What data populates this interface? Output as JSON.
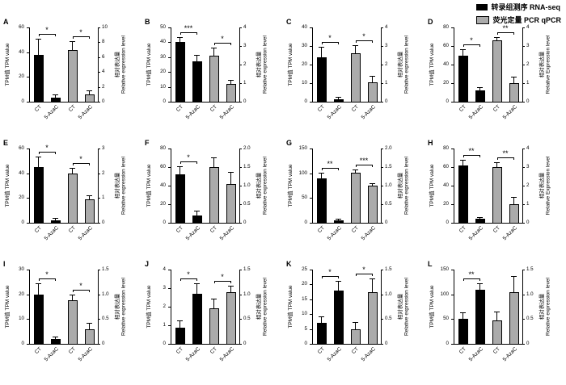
{
  "legend": {
    "items": [
      {
        "label": "转录组测序 RNA-seq",
        "color": "#000000"
      },
      {
        "label": "荧光定量 PCR qPCR",
        "color": "#ababab"
      }
    ]
  },
  "chart_data": [
    {
      "type": "bar",
      "panel": "A",
      "left_axis": {
        "label": "TPM值 TPM value",
        "max": 60,
        "ticks": [
          "0",
          "20",
          "40",
          "60"
        ]
      },
      "right_axis": {
        "label_cn": "相对表达量",
        "label_en": "Relative expression level",
        "max": 10,
        "ticks": [
          "0",
          "2",
          "4",
          "6",
          "8",
          "10"
        ]
      },
      "categories": [
        "CT",
        "5-AzaC",
        "CT",
        "5-AzaC"
      ],
      "bars": [
        {
          "series": "RNA-seq",
          "category": "CT",
          "axis": "left",
          "value": 38,
          "error": 12
        },
        {
          "series": "RNA-seq",
          "category": "5-AzaC",
          "axis": "left",
          "value": 3.5,
          "error": 1.5
        },
        {
          "series": "qPCR",
          "category": "CT",
          "axis": "right",
          "value": 7,
          "error": 1
        },
        {
          "series": "qPCR",
          "category": "5-AzaC",
          "axis": "right",
          "value": 1,
          "error": 0.4
        }
      ],
      "significance": [
        {
          "bars": [
            0,
            1
          ],
          "label": "*"
        },
        {
          "bars": [
            2,
            3
          ],
          "label": "*"
        }
      ]
    },
    {
      "type": "bar",
      "panel": "B",
      "left_axis": {
        "label": "TPM值 TPM value",
        "max": 50,
        "ticks": [
          "0",
          "10",
          "20",
          "30",
          "40",
          "50"
        ]
      },
      "right_axis": {
        "label_cn": "相对表达量",
        "label_en": "Relative expression level",
        "max": 4,
        "ticks": [
          "0",
          "1",
          "2",
          "3",
          "4"
        ]
      },
      "categories": [
        "CT",
        "5-AzaC",
        "CT",
        "5-AzaC"
      ],
      "bars": [
        {
          "series": "RNA-seq",
          "category": "CT",
          "axis": "left",
          "value": 40,
          "error": 3
        },
        {
          "series": "RNA-seq",
          "category": "5-AzaC",
          "axis": "left",
          "value": 27,
          "error": 4
        },
        {
          "series": "qPCR",
          "category": "CT",
          "axis": "right",
          "value": 2.5,
          "error": 0.35
        },
        {
          "series": "qPCR",
          "category": "5-AzaC",
          "axis": "right",
          "value": 0.95,
          "error": 0.2
        }
      ],
      "significance": [
        {
          "bars": [
            0,
            1
          ],
          "label": "***"
        },
        {
          "bars": [
            2,
            3
          ],
          "label": "*"
        }
      ]
    },
    {
      "type": "bar",
      "panel": "C",
      "left_axis": {
        "label": "TPM值 TPM value",
        "max": 40,
        "ticks": [
          "0",
          "10",
          "20",
          "30",
          "40"
        ]
      },
      "right_axis": {
        "label_cn": "相对表达量",
        "label_en": "Relative expression level",
        "max": 4,
        "ticks": [
          "0",
          "1",
          "2",
          "3",
          "4"
        ]
      },
      "categories": [
        "CT",
        "5-AzaC",
        "CT",
        "5-AzaC"
      ],
      "bars": [
        {
          "series": "RNA-seq",
          "category": "CT",
          "axis": "left",
          "value": 24,
          "error": 5
        },
        {
          "series": "RNA-seq",
          "category": "5-AzaC",
          "axis": "left",
          "value": 1.5,
          "error": 0.8
        },
        {
          "series": "qPCR",
          "category": "CT",
          "axis": "right",
          "value": 2.6,
          "error": 0.4
        },
        {
          "series": "qPCR",
          "category": "5-AzaC",
          "axis": "right",
          "value": 1.05,
          "error": 0.3
        }
      ],
      "significance": [
        {
          "bars": [
            0,
            1
          ],
          "label": "*"
        },
        {
          "bars": [
            2,
            3
          ],
          "label": "*"
        }
      ]
    },
    {
      "type": "bar",
      "panel": "D",
      "left_axis": {
        "label": "TPM值 TPM value",
        "max": 80,
        "ticks": [
          "0",
          "20",
          "40",
          "60",
          "80"
        ]
      },
      "right_axis": {
        "label_cn": "相对表达量",
        "label_en": "Relative Expression level",
        "max": 4,
        "ticks": [
          "0",
          "1",
          "2",
          "3",
          "4"
        ]
      },
      "categories": [
        "CT",
        "5-AzaC",
        "CT",
        "5-AzaC"
      ],
      "bars": [
        {
          "series": "RNA-seq",
          "category": "CT",
          "axis": "left",
          "value": 50,
          "error": 6
        },
        {
          "series": "RNA-seq",
          "category": "5-AzaC",
          "axis": "left",
          "value": 12,
          "error": 3
        },
        {
          "series": "qPCR",
          "category": "CT",
          "axis": "right",
          "value": 3.3,
          "error": 0.15
        },
        {
          "series": "qPCR",
          "category": "5-AzaC",
          "axis": "right",
          "value": 1,
          "error": 0.3
        }
      ],
      "significance": [
        {
          "bars": [
            0,
            1
          ],
          "label": "*"
        },
        {
          "bars": [
            2,
            3
          ],
          "label": "**"
        }
      ]
    },
    {
      "type": "bar",
      "panel": "E",
      "left_axis": {
        "label": "TPM值 TPM value",
        "max": 60,
        "ticks": [
          "0",
          "20",
          "40",
          "60"
        ]
      },
      "right_axis": {
        "label_cn": "相对表达量",
        "label_en": "Relative expression level",
        "max": 3,
        "ticks": [
          "0",
          "1",
          "2",
          "3"
        ]
      },
      "categories": [
        "CT",
        "5-AzaC",
        "CT",
        "5-AzaC"
      ],
      "bars": [
        {
          "series": "RNA-seq",
          "category": "CT",
          "axis": "left",
          "value": 45,
          "error": 8
        },
        {
          "series": "RNA-seq",
          "category": "5-AzaC",
          "axis": "left",
          "value": 2,
          "error": 1
        },
        {
          "series": "qPCR",
          "category": "CT",
          "axis": "right",
          "value": 2,
          "error": 0.2
        },
        {
          "series": "qPCR",
          "category": "5-AzaC",
          "axis": "right",
          "value": 0.95,
          "error": 0.12
        }
      ],
      "significance": [
        {
          "bars": [
            0,
            1
          ],
          "label": "*"
        },
        {
          "bars": [
            2,
            3
          ],
          "label": "*"
        }
      ]
    },
    {
      "type": "bar",
      "panel": "F",
      "left_axis": {
        "label": "TPM值 TPM value",
        "max": 80,
        "ticks": [
          "0",
          "20",
          "40",
          "60",
          "80"
        ]
      },
      "right_axis": {
        "label_cn": "相对表达量",
        "label_en": "Relative expression level",
        "max": 2,
        "ticks": [
          "0",
          "0.5",
          "1.0",
          "1.5",
          "2.0"
        ]
      },
      "categories": [
        "CT",
        "5-AzaC",
        "CT",
        "5-AzaC"
      ],
      "bars": [
        {
          "series": "RNA-seq",
          "category": "CT",
          "axis": "left",
          "value": 52,
          "error": 8
        },
        {
          "series": "RNA-seq",
          "category": "5-AzaC",
          "axis": "left",
          "value": 8,
          "error": 4
        },
        {
          "series": "qPCR",
          "category": "CT",
          "axis": "right",
          "value": 1.5,
          "error": 0.25
        },
        {
          "series": "qPCR",
          "category": "5-AzaC",
          "axis": "right",
          "value": 1.05,
          "error": 0.3
        }
      ],
      "significance": [
        {
          "bars": [
            0,
            1
          ],
          "label": "*"
        }
      ]
    },
    {
      "type": "bar",
      "panel": "G",
      "left_axis": {
        "label": "TPM值 TPM value",
        "max": 150,
        "ticks": [
          "0",
          "50",
          "100",
          "150"
        ]
      },
      "right_axis": {
        "label_cn": "相对表达量",
        "label_en": "Relative expression level",
        "max": 2,
        "ticks": [
          "0",
          "0.5",
          "1.0",
          "1.5",
          "2.0"
        ]
      },
      "categories": [
        "CT",
        "5-AzaC",
        "CT",
        "5-AzaC"
      ],
      "bars": [
        {
          "series": "RNA-seq",
          "category": "CT",
          "axis": "left",
          "value": 90,
          "error": 10
        },
        {
          "series": "RNA-seq",
          "category": "5-AzaC",
          "axis": "left",
          "value": 5,
          "error": 2
        },
        {
          "series": "qPCR",
          "category": "CT",
          "axis": "right",
          "value": 1.35,
          "error": 0.06
        },
        {
          "series": "qPCR",
          "category": "5-AzaC",
          "axis": "right",
          "value": 1,
          "error": 0.05
        }
      ],
      "significance": [
        {
          "bars": [
            0,
            1
          ],
          "label": "**"
        },
        {
          "bars": [
            2,
            3
          ],
          "label": "***"
        }
      ]
    },
    {
      "type": "bar",
      "panel": "H",
      "left_axis": {
        "label": "TPM值 TPM value",
        "max": 80,
        "ticks": [
          "0",
          "20",
          "40",
          "60",
          "80"
        ]
      },
      "right_axis": {
        "label_cn": "相对表达量",
        "label_en": "Relative Expression level",
        "max": 4,
        "ticks": [
          "0",
          "1",
          "2",
          "3",
          "4"
        ]
      },
      "categories": [
        "CT",
        "5-AzaC",
        "CT",
        "5-AzaC"
      ],
      "bars": [
        {
          "series": "RNA-seq",
          "category": "CT",
          "axis": "left",
          "value": 62,
          "error": 5
        },
        {
          "series": "RNA-seq",
          "category": "5-AzaC",
          "axis": "left",
          "value": 4,
          "error": 1.5
        },
        {
          "series": "qPCR",
          "category": "CT",
          "axis": "right",
          "value": 3,
          "error": 0.2
        },
        {
          "series": "qPCR",
          "category": "5-AzaC",
          "axis": "right",
          "value": 1,
          "error": 0.35
        }
      ],
      "significance": [
        {
          "bars": [
            0,
            1
          ],
          "label": "**"
        },
        {
          "bars": [
            2,
            3
          ],
          "label": "**"
        }
      ]
    },
    {
      "type": "bar",
      "panel": "I",
      "left_axis": {
        "label": "TPM值 TPM value",
        "max": 30,
        "ticks": [
          "0",
          "10",
          "20",
          "30"
        ]
      },
      "right_axis": {
        "label_cn": "相对表达量",
        "label_en": "Relative expression level",
        "max": 1.5,
        "ticks": [
          "0",
          "0.5",
          "1.0",
          "1.5"
        ]
      },
      "categories": [
        "CT",
        "5-AzaC",
        "CT",
        "5-AzaC"
      ],
      "bars": [
        {
          "series": "RNA-seq",
          "category": "CT",
          "axis": "left",
          "value": 20,
          "error": 4
        },
        {
          "series": "RNA-seq",
          "category": "5-AzaC",
          "axis": "left",
          "value": 2,
          "error": 0.6
        },
        {
          "series": "qPCR",
          "category": "CT",
          "axis": "right",
          "value": 0.88,
          "error": 0.1
        },
        {
          "series": "qPCR",
          "category": "5-AzaC",
          "axis": "right",
          "value": 0.3,
          "error": 0.1
        }
      ],
      "significance": [
        {
          "bars": [
            0,
            1
          ],
          "label": "*"
        },
        {
          "bars": [
            2,
            3
          ],
          "label": "*"
        }
      ]
    },
    {
      "type": "bar",
      "panel": "J",
      "left_axis": {
        "label": "TPM值 TPM value",
        "max": 4,
        "ticks": [
          "0",
          "1",
          "2",
          "3",
          "4"
        ]
      },
      "right_axis": {
        "label_cn": "相对表达量",
        "label_en": "Relative expression level",
        "max": 1.5,
        "ticks": [
          "0",
          "0.5",
          "1.0",
          "1.5"
        ]
      },
      "categories": [
        "CT",
        "5-AzaC",
        "CT",
        "5-AzaC"
      ],
      "bars": [
        {
          "series": "RNA-seq",
          "category": "CT",
          "axis": "left",
          "value": 0.85,
          "error": 0.35
        },
        {
          "series": "RNA-seq",
          "category": "5-AzaC",
          "axis": "left",
          "value": 2.7,
          "error": 0.5
        },
        {
          "series": "qPCR",
          "category": "CT",
          "axis": "right",
          "value": 0.72,
          "error": 0.18
        },
        {
          "series": "qPCR",
          "category": "5-AzaC",
          "axis": "right",
          "value": 1.05,
          "error": 0.1
        }
      ],
      "significance": [
        {
          "bars": [
            0,
            1
          ],
          "label": "*"
        },
        {
          "bars": [
            2,
            3
          ],
          "label": "*"
        }
      ]
    },
    {
      "type": "bar",
      "panel": "K",
      "left_axis": {
        "label": "TPM值 TPM value",
        "max": 25,
        "ticks": [
          "0",
          "5",
          "10",
          "15",
          "20",
          "25"
        ]
      },
      "right_axis": {
        "label_cn": "相对表达量",
        "label_en": "Relative expression level",
        "max": 1.5,
        "ticks": [
          "0",
          "0.5",
          "1.0",
          "1.5"
        ]
      },
      "categories": [
        "CT",
        "5-AzaC",
        "CT",
        "5-AzaC"
      ],
      "bars": [
        {
          "series": "RNA-seq",
          "category": "CT",
          "axis": "left",
          "value": 7,
          "error": 2
        },
        {
          "series": "RNA-seq",
          "category": "5-AzaC",
          "axis": "left",
          "value": 18,
          "error": 3
        },
        {
          "series": "qPCR",
          "category": "CT",
          "axis": "right",
          "value": 0.3,
          "error": 0.12
        },
        {
          "series": "qPCR",
          "category": "5-AzaC",
          "axis": "right",
          "value": 1.05,
          "error": 0.25
        }
      ],
      "significance": [
        {
          "bars": [
            0,
            1
          ],
          "label": "*"
        },
        {
          "bars": [
            2,
            3
          ],
          "label": "*"
        }
      ]
    },
    {
      "type": "bar",
      "panel": "L",
      "left_axis": {
        "label": "TPM值 TPM value",
        "max": 150,
        "ticks": [
          "0",
          "50",
          "100",
          "150"
        ]
      },
      "right_axis": {
        "label_cn": "相对表达量",
        "label_en": "Relative expression level",
        "max": 1.5,
        "ticks": [
          "0",
          "0.5",
          "1.0",
          "1.5"
        ]
      },
      "categories": [
        "CT",
        "5-AzaC",
        "CT",
        "5-AzaC"
      ],
      "bars": [
        {
          "series": "RNA-seq",
          "category": "CT",
          "axis": "left",
          "value": 50,
          "error": 12
        },
        {
          "series": "RNA-seq",
          "category": "5-AzaC",
          "axis": "left",
          "value": 110,
          "error": 10
        },
        {
          "series": "qPCR",
          "category": "CT",
          "axis": "right",
          "value": 0.48,
          "error": 0.15
        },
        {
          "series": "qPCR",
          "category": "5-AzaC",
          "axis": "right",
          "value": 1.05,
          "error": 0.3
        }
      ],
      "significance": [
        {
          "bars": [
            0,
            1
          ],
          "label": "**"
        }
      ]
    }
  ]
}
